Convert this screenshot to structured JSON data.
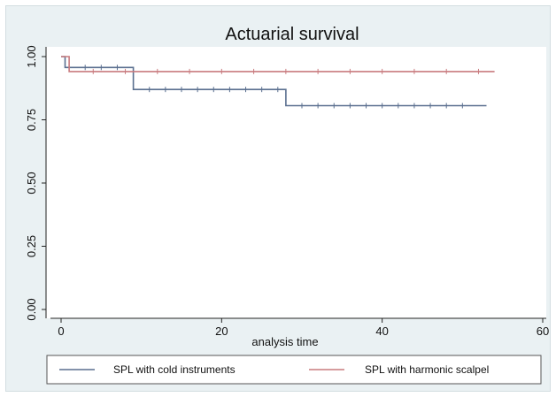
{
  "chart_data": {
    "type": "line",
    "title": "Actuarial survival",
    "xlabel": "analysis time",
    "ylabel": "",
    "xlim": [
      0,
      60
    ],
    "ylim": [
      0,
      1
    ],
    "xticks": [
      0,
      20,
      40,
      60
    ],
    "xtick_labels": [
      "0",
      "20",
      "40",
      "60"
    ],
    "yticks": [
      0,
      0.25,
      0.5,
      0.75,
      1
    ],
    "ytick_labels": [
      "0.00",
      "0.25",
      "0.50",
      "0.75",
      "1.00"
    ],
    "grid": false,
    "legend_position": "bottom",
    "step": true,
    "series": [
      {
        "name": "SPL with cold instruments",
        "color": "#5a6f8f",
        "x": [
          0,
          0.5,
          0.5,
          9,
          9,
          28,
          28,
          53
        ],
        "y": [
          1.0,
          1.0,
          0.957,
          0.957,
          0.87,
          0.87,
          0.806,
          0.806
        ],
        "censored_x": [
          3,
          5,
          7,
          11,
          13,
          15,
          17,
          19,
          21,
          23,
          25,
          27,
          30,
          32,
          34,
          36,
          38,
          40,
          42,
          44,
          46,
          48,
          50
        ]
      },
      {
        "name": "SPL with harmonic scalpel",
        "color": "#c97b7f",
        "x": [
          0,
          1,
          1,
          54
        ],
        "y": [
          1.0,
          1.0,
          0.941,
          0.941
        ],
        "censored_x": [
          4,
          8,
          12,
          16,
          20,
          24,
          28,
          32,
          36,
          40,
          44,
          48,
          52
        ]
      }
    ]
  }
}
